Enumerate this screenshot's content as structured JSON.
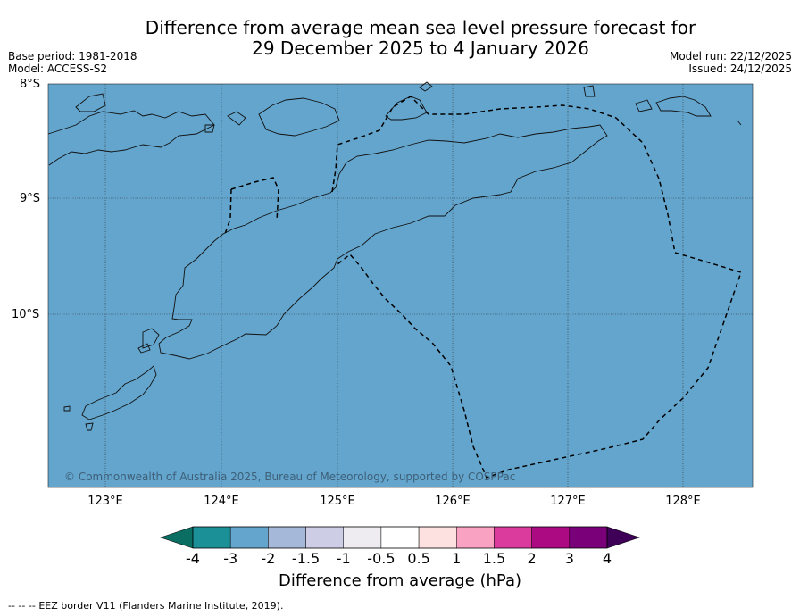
{
  "title": {
    "line1": "Difference from average mean sea level pressure forecast for",
    "line2": "29 December 2025 to 4 January 2026"
  },
  "meta": {
    "base_period": "Base period: 1981-2018",
    "model": "Model: ACCESS-S2",
    "model_run": "Model run: 22/12/2025",
    "issued": "Issued: 24/12/2025"
  },
  "map": {
    "fill_color": "#63a5cd",
    "latitude_labels": [
      "8°S",
      "9°S",
      "10°S"
    ],
    "longitude_labels": [
      "123°E",
      "124°E",
      "125°E",
      "126°E",
      "127°E",
      "128°E"
    ],
    "copyright": "© Commonwealth of Australia 2025, Bureau of Meteorology, supported by COSPPac",
    "features": [
      "coastline",
      "eez-border-dashed"
    ]
  },
  "colorbar": {
    "label": "Difference from average (hPa)",
    "ticks": [
      "-4",
      "-3",
      "-2",
      "-1.5",
      "-1",
      "-0.5",
      "0.5",
      "1",
      "1.5",
      "2",
      "3",
      "4"
    ],
    "colors": [
      "#1b9096",
      "#63a5cd",
      "#a6b8d9",
      "#cdcde6",
      "#eeebf1",
      "#ffffff",
      "#fde0e0",
      "#f9a2c1",
      "#dc3b9e",
      "#ab0a82",
      "#7a007a"
    ],
    "low_extend_color": "#0b6e63",
    "high_extend_color": "#3f0058"
  },
  "footer": {
    "legend_symbol": "-- -- --",
    "legend_text": "EEZ border V11 (Flanders Marine Institute, 2019)."
  }
}
